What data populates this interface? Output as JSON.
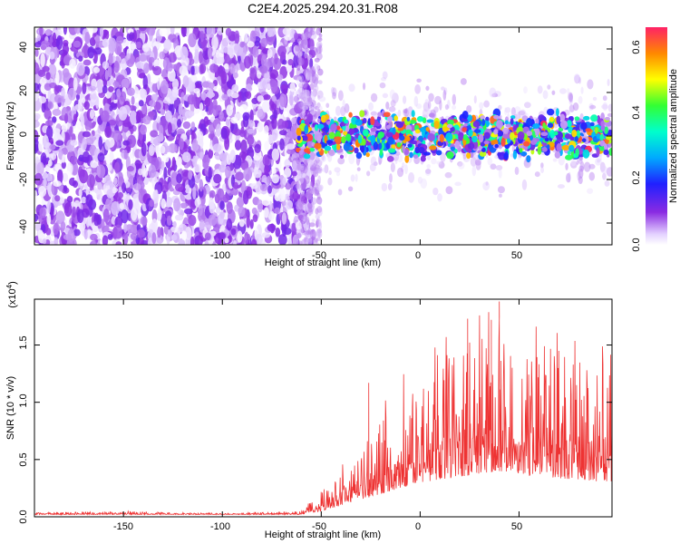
{
  "chart_data": [
    {
      "type": "heatmap",
      "title": "C2E4.2025.294.20.31.R08",
      "xlabel": "Height of straight line (km)",
      "ylabel": "Frequency (Hz)",
      "xlim": [
        -195,
        97
      ],
      "ylim": [
        -50,
        50
      ],
      "xticks": [
        -150,
        -100,
        -50,
        0,
        50
      ],
      "yticks": [
        -40,
        -20,
        0,
        20,
        40
      ],
      "regions": [
        {
          "name": "noise",
          "x_range": [
            -195,
            -58
          ],
          "freq_range": [
            -50,
            50
          ],
          "amplitude_range": [
            0.0,
            0.12
          ]
        },
        {
          "name": "transition",
          "x_range": [
            -62,
            -50
          ],
          "freq_range": [
            -50,
            50
          ],
          "amplitude_range": [
            0.0,
            0.1
          ]
        },
        {
          "name": "signal-band",
          "x_range": [
            -62,
            97
          ],
          "freq_center": 0,
          "freq_halfwidth": 8,
          "amplitude_range": [
            0.05,
            0.65
          ]
        }
      ],
      "colorbar": {
        "label": "Normalized spectral amplitude",
        "range": [
          0.0,
          0.65
        ],
        "ticks": [
          "0.0",
          "0.2",
          "0.4",
          "0.6"
        ]
      }
    },
    {
      "type": "line",
      "title": "",
      "xlabel": "Height of straight line (km)",
      "ylabel": "SNR (10 * v/v)",
      "scale_label": "(x10",
      "scale_exp": "4",
      "scale_close": ")",
      "xlim": [
        -195,
        97
      ],
      "ylim": [
        0,
        1.9
      ],
      "xticks": [
        -150,
        -100,
        -50,
        0,
        50
      ],
      "yticks": [
        "0.0",
        "0.5",
        "1.0",
        "1.5"
      ],
      "series": [
        {
          "name": "SNR",
          "color": "#ee3333",
          "envelope": [
            {
              "x": -195,
              "base": 0.02,
              "peak": 0.04
            },
            {
              "x": -150,
              "base": 0.02,
              "peak": 0.05
            },
            {
              "x": -100,
              "base": 0.02,
              "peak": 0.03
            },
            {
              "x": -60,
              "base": 0.02,
              "peak": 0.05
            },
            {
              "x": -50,
              "base": 0.05,
              "peak": 0.25
            },
            {
              "x": -40,
              "base": 0.1,
              "peak": 0.45
            },
            {
              "x": -30,
              "base": 0.15,
              "peak": 0.6
            },
            {
              "x": -20,
              "base": 0.2,
              "peak": 0.85
            },
            {
              "x": 0,
              "base": 0.3,
              "peak": 1.1
            },
            {
              "x": 20,
              "base": 0.35,
              "peak": 1.45
            },
            {
              "x": 40,
              "base": 0.4,
              "peak": 1.6
            },
            {
              "x": 60,
              "base": 0.35,
              "peak": 1.4
            },
            {
              "x": 97,
              "base": 0.3,
              "peak": 1.3
            }
          ],
          "spikes": [
            {
              "x": -26,
              "y": 1.17
            },
            {
              "x": 40,
              "y": 1.88
            },
            {
              "x": 24,
              "y": 1.73
            },
            {
              "x": 36,
              "y": 1.72
            }
          ]
        }
      ]
    }
  ]
}
